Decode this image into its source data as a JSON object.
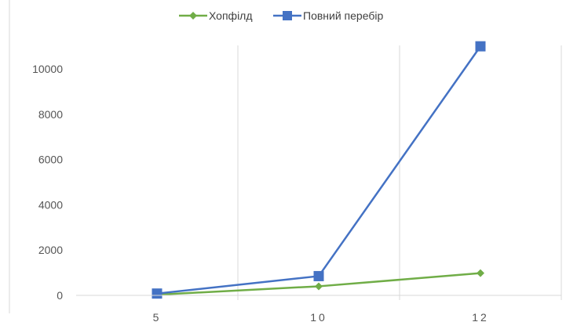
{
  "chart_data": {
    "type": "line",
    "title": "",
    "xlabel": "",
    "ylabel": "",
    "x": [
      5,
      10,
      12
    ],
    "x_tick_labels": [
      "5",
      "10",
      "12"
    ],
    "y_tick_labels": [
      "0",
      "2000",
      "4000",
      "6000",
      "8000",
      "10000"
    ],
    "ylim": [
      0,
      11000
    ],
    "grid": "vertical",
    "legend_position": "top",
    "series": [
      {
        "name": "Хопфілд",
        "values": [
          30,
          400,
          980
        ],
        "color": "#70ad47",
        "marker": "diamond-icon"
      },
      {
        "name": "Повний перебір",
        "values": [
          80,
          850,
          11000
        ],
        "color": "#4472c4",
        "marker": "square-icon"
      }
    ]
  }
}
